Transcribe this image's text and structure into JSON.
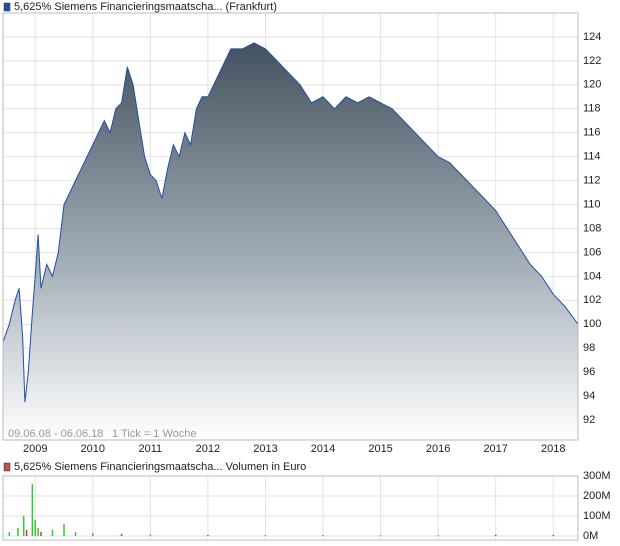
{
  "chart_data": [
    {
      "type": "area",
      "series": [
        {
          "name": "5,625% Siemens Financieringsmaatscha... (Frankfurt)",
          "color": "#1f4fa8",
          "x": [
            2008.44,
            2008.55,
            2008.65,
            2008.72,
            2008.78,
            2008.82,
            2008.88,
            2008.95,
            2009.0,
            2009.05,
            2009.1,
            2009.2,
            2009.3,
            2009.4,
            2009.5,
            2009.6,
            2009.7,
            2009.8,
            2009.9,
            2010.0,
            2010.1,
            2010.2,
            2010.3,
            2010.4,
            2010.5,
            2010.6,
            2010.7,
            2010.8,
            2010.9,
            2011.0,
            2011.1,
            2011.2,
            2011.3,
            2011.4,
            2011.5,
            2011.6,
            2011.7,
            2011.8,
            2011.9,
            2012.0,
            2012.2,
            2012.4,
            2012.6,
            2012.8,
            2013.0,
            2013.2,
            2013.4,
            2013.6,
            2013.8,
            2014.0,
            2014.2,
            2014.4,
            2014.6,
            2014.8,
            2015.0,
            2015.2,
            2015.4,
            2015.6,
            2015.8,
            2016.0,
            2016.2,
            2016.4,
            2016.6,
            2016.8,
            2017.0,
            2017.2,
            2017.4,
            2017.6,
            2017.8,
            2018.0,
            2018.2,
            2018.43
          ],
          "values": [
            98.5,
            100,
            102,
            103,
            99,
            93.5,
            96,
            101,
            104,
            107.5,
            103,
            105,
            104,
            106,
            110,
            111,
            112,
            113,
            114,
            115,
            116,
            117,
            116,
            118,
            118.5,
            121.5,
            120,
            117,
            114,
            112.5,
            112,
            110.5,
            113,
            115,
            114,
            116,
            115,
            118,
            119,
            119,
            121,
            123,
            123,
            123.5,
            123,
            122,
            121,
            120,
            118.5,
            119,
            118,
            119,
            118.5,
            119,
            118.5,
            118,
            117,
            116,
            115,
            114,
            113.5,
            112.5,
            111.5,
            110.5,
            109.5,
            108,
            106.5,
            105,
            104,
            102.5,
            101.5,
            100
          ]
        }
      ],
      "annotations": [
        "09.06.08 - 06.06.18",
        "1 Tick = 1 Woche"
      ],
      "xlim": [
        2008.44,
        2018.43
      ],
      "xticks": [
        2009,
        2010,
        2011,
        2012,
        2013,
        2014,
        2015,
        2016,
        2017,
        2018
      ],
      "ylim": [
        90.33,
        126
      ],
      "yticks": [
        92,
        94,
        96,
        98,
        100,
        102,
        104,
        106,
        108,
        110,
        112,
        114,
        116,
        118,
        120,
        122,
        124
      ],
      "grid": true
    },
    {
      "type": "bar",
      "series": [
        {
          "name": "5,625% Siemens Financieringsmaatscha... Volumen in Euro",
          "color": "#c0504d",
          "x": [
            2008.55,
            2008.7,
            2008.8,
            2008.85,
            2008.95,
            2009.0,
            2009.05,
            2009.1,
            2009.3,
            2009.5,
            2009.7,
            2010.0,
            2010.5,
            2011.0,
            2012.0,
            2013.0,
            2014.0,
            2015.0,
            2016.0,
            2017.0,
            2018.0
          ],
          "values": [
            20000000,
            40000000,
            100000000,
            30000000,
            260000000,
            80000000,
            40000000,
            20000000,
            30000000,
            60000000,
            20000000,
            15000000,
            10000000,
            8000000,
            5000000,
            5000000,
            4000000,
            4000000,
            3000000,
            6000000,
            5000000
          ],
          "colors": [
            "#33cc33",
            "#33cc33",
            "#33cc33",
            "#cc3333",
            "#33cc33",
            "#33cc33",
            "#33cc33",
            "#cc3333",
            "#33cc33",
            "#33cc33",
            "#33cc33",
            "#33cc33",
            "#cc3333",
            "#33cc33",
            "#cc3333",
            "#33cc33",
            "#cc3333",
            "#33cc33",
            "#cc3333",
            "#cc3333",
            "#cc3333"
          ]
        }
      ],
      "xlim": [
        2008.44,
        2018.43
      ],
      "xticks": [
        2009,
        2010,
        2011,
        2012,
        2013,
        2014,
        2015,
        2016,
        2017,
        2018
      ],
      "ylim": [
        -20000000,
        300000000
      ],
      "yticks": [
        {
          "value": 300000000,
          "label": "300M"
        },
        {
          "value": 200000000,
          "label": "200M"
        },
        {
          "value": 100000000,
          "label": "100M"
        },
        {
          "value": 0,
          "label": "0M"
        }
      ],
      "grid": true
    }
  ]
}
